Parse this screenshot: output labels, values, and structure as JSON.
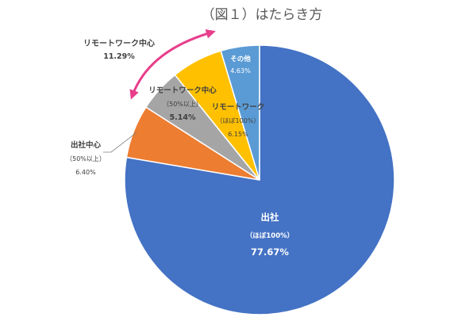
{
  "chart_data": {
    "type": "pie",
    "title": "（図１）はたらき方",
    "start_angle_deg": 0,
    "direction": "clockwise",
    "slices": [
      {
        "name_lines": [
          "出社",
          "（ほぼ100%）"
        ],
        "value": 77.67,
        "value_label": "77.67%",
        "color": "#4472C4"
      },
      {
        "name_lines": [
          "出社中心",
          "（50%以上）"
        ],
        "value": 6.4,
        "value_label": "6.40%",
        "color": "#ED7D31"
      },
      {
        "name_lines": [
          "リモートワーク中心",
          "（50%以上）"
        ],
        "value": 5.14,
        "value_label": "5.14%",
        "color": "#A5A5A5"
      },
      {
        "name_lines": [
          "リモートワーク",
          "（ほぼ100%）"
        ],
        "value": 6.15,
        "value_label": "6.15%",
        "color": "#FFC000"
      },
      {
        "name_lines": [
          "その他"
        ],
        "value": 4.63,
        "value_label": "4.63%",
        "color": "#5B9BD5"
      }
    ],
    "group_annotation": {
      "label": "リモートワーク中心",
      "value_label": "11.29%",
      "arrow_color": "#E83E8C"
    }
  }
}
